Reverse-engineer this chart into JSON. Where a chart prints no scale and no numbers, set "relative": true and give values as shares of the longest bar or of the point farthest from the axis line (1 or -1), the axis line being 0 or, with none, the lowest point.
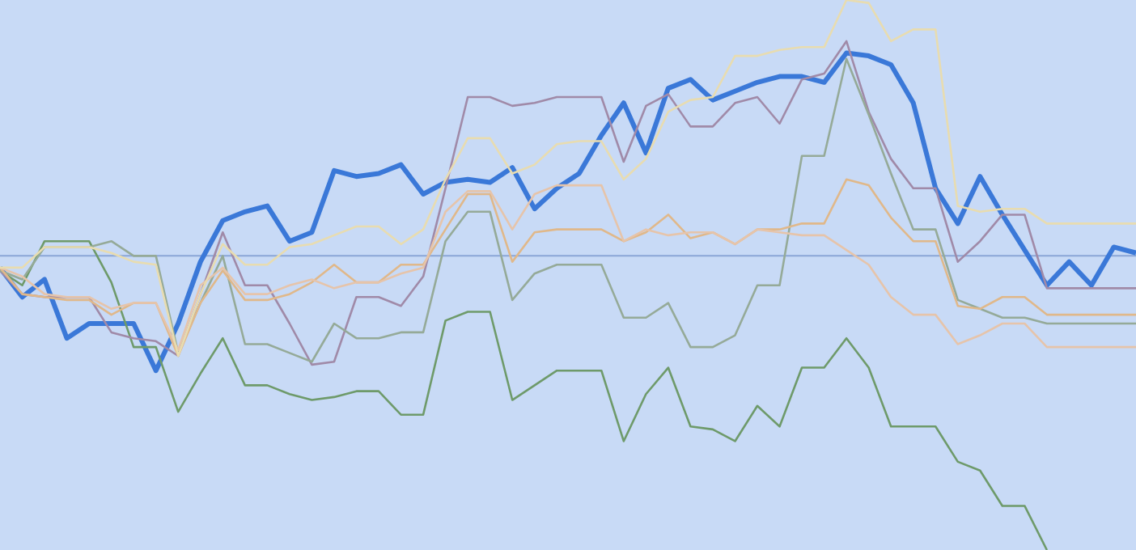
{
  "chart_data": {
    "type": "line",
    "relative": true,
    "marker": "none",
    "line_style": "solid",
    "legend": false,
    "categories": [
      null,
      null,
      null,
      null,
      null,
      null,
      null,
      null,
      null,
      null,
      null,
      null,
      null,
      null,
      null,
      null,
      null,
      null,
      null,
      null,
      null,
      null,
      null,
      null,
      null,
      null,
      null,
      null,
      null,
      null,
      null,
      null,
      null,
      null,
      null,
      null,
      null,
      null,
      null,
      null,
      null,
      null,
      null,
      null,
      null,
      null,
      null,
      null,
      null,
      null,
      null,
      null
    ],
    "ref_lines": [
      {
        "axis": "y",
        "value": 0,
        "color": "#8aa6d6"
      }
    ],
    "series": [
      {
        "color": "#e8dcb0",
        "values": [
          -0.04,
          -0.04,
          0.03,
          0.03,
          0.03,
          0.01,
          -0.02,
          -0.03,
          -0.34,
          -0.13,
          0.04,
          -0.03,
          -0.03,
          0.03,
          0.04,
          0.07,
          0.1,
          0.1,
          0.04,
          0.09,
          0.26,
          0.4,
          0.4,
          0.28,
          0.31,
          0.38,
          0.39,
          0.39,
          0.26,
          0.33,
          0.49,
          0.53,
          0.54,
          0.68,
          0.68,
          0.7,
          0.71,
          0.71,
          0.87,
          0.86,
          0.73,
          0.77,
          0.77,
          0.17,
          0.15,
          0.16,
          0.16,
          0.11,
          0.11,
          0.11,
          0.11,
          0.11
        ]
      },
      {
        "color": "#e6c4aa",
        "values": [
          -0.04,
          -0.07,
          -0.13,
          -0.14,
          -0.14,
          -0.18,
          -0.16,
          -0.16,
          -0.32,
          -0.1,
          -0.04,
          -0.13,
          -0.13,
          -0.1,
          -0.08,
          -0.11,
          -0.09,
          -0.09,
          -0.06,
          -0.04,
          0.15,
          0.22,
          0.22,
          0.09,
          0.21,
          0.24,
          0.24,
          0.24,
          0.05,
          0.09,
          0.07,
          0.08,
          0.08,
          0.04,
          0.09,
          0.08,
          0.07,
          0.07,
          0.02,
          -0.03,
          -0.14,
          -0.2,
          -0.2,
          -0.3,
          -0.27,
          -0.23,
          -0.23,
          -0.31,
          -0.31,
          -0.31,
          -0.31,
          -0.31
        ]
      },
      {
        "color": "#e0b88a",
        "values": [
          -0.04,
          -0.13,
          -0.14,
          -0.15,
          -0.15,
          -0.2,
          -0.16,
          -0.16,
          -0.34,
          -0.16,
          -0.05,
          -0.15,
          -0.15,
          -0.13,
          -0.09,
          -0.03,
          -0.09,
          -0.09,
          -0.03,
          -0.03,
          0.09,
          0.21,
          0.21,
          -0.02,
          0.08,
          0.09,
          0.09,
          0.09,
          0.05,
          0.08,
          0.14,
          0.06,
          0.08,
          0.04,
          0.09,
          0.09,
          0.11,
          0.11,
          0.26,
          0.24,
          0.13,
          0.05,
          0.05,
          -0.17,
          -0.18,
          -0.14,
          -0.14,
          -0.2,
          -0.2,
          -0.2,
          -0.2,
          -0.2
        ]
      },
      {
        "color": "#95aa98",
        "values": [
          -0.05,
          -0.08,
          0.03,
          0.03,
          0.03,
          0.05,
          0,
          0,
          -0.33,
          -0.16,
          0,
          -0.3,
          -0.3,
          -0.33,
          -0.36,
          -0.23,
          -0.28,
          -0.28,
          -0.26,
          -0.26,
          0.05,
          0.15,
          0.15,
          -0.15,
          -0.06,
          -0.03,
          -0.03,
          -0.03,
          -0.21,
          -0.21,
          -0.16,
          -0.31,
          -0.31,
          -0.27,
          -0.1,
          -0.1,
          0.34,
          0.34,
          0.67,
          0.48,
          0.28,
          0.09,
          0.09,
          -0.15,
          -0.18,
          -0.21,
          -0.21,
          -0.23,
          -0.23,
          -0.23,
          -0.23,
          -0.23
        ]
      },
      {
        "color": "#a08aa8",
        "values": [
          -0.05,
          -0.13,
          -0.14,
          -0.14,
          -0.14,
          -0.26,
          -0.28,
          -0.29,
          -0.34,
          -0.13,
          0.08,
          -0.1,
          -0.1,
          -0.23,
          -0.37,
          -0.36,
          -0.14,
          -0.14,
          -0.17,
          -0.07,
          0.23,
          0.54,
          0.54,
          0.51,
          0.52,
          0.54,
          0.54,
          0.54,
          0.32,
          0.51,
          0.55,
          0.44,
          0.44,
          0.52,
          0.54,
          0.45,
          0.6,
          0.62,
          0.73,
          0.49,
          0.33,
          0.23,
          0.23,
          -0.02,
          0.05,
          0.14,
          0.14,
          -0.11,
          -0.11,
          -0.11,
          -0.11,
          -0.11
        ]
      },
      {
        "color": "#6e9a6a",
        "values": [
          -0.05,
          -0.1,
          0.05,
          0.05,
          0.05,
          -0.09,
          -0.31,
          -0.31,
          -0.53,
          -0.4,
          -0.28,
          -0.44,
          -0.44,
          -0.47,
          -0.49,
          -0.48,
          -0.46,
          -0.46,
          -0.54,
          -0.54,
          -0.22,
          -0.19,
          -0.19,
          -0.49,
          -0.44,
          -0.39,
          -0.39,
          -0.39,
          -0.63,
          -0.47,
          -0.38,
          -0.58,
          -0.59,
          -0.63,
          -0.51,
          -0.58,
          -0.38,
          -0.38,
          -0.28,
          -0.38,
          -0.58,
          -0.58,
          -0.58,
          -0.7,
          -0.73,
          -0.85,
          -0.85,
          -1.0,
          null,
          null,
          null,
          null
        ]
      },
      {
        "color": "#3a78d8",
        "values": [
          -0.04,
          -0.14,
          -0.08,
          -0.28,
          -0.23,
          -0.23,
          -0.23,
          -0.39,
          -0.23,
          -0.02,
          0.12,
          0.15,
          0.17,
          0.05,
          0.08,
          0.29,
          0.27,
          0.28,
          0.31,
          0.21,
          0.25,
          0.26,
          0.25,
          0.3,
          0.16,
          0.23,
          0.28,
          0.41,
          0.52,
          0.35,
          0.57,
          0.6,
          0.53,
          0.56,
          0.59,
          0.61,
          0.61,
          0.59,
          0.69,
          0.68,
          0.65,
          0.52,
          0.23,
          0.11,
          0.27,
          0.14,
          0.02,
          -0.1,
          -0.02,
          -0.1,
          0.03,
          0.01
        ]
      }
    ]
  }
}
